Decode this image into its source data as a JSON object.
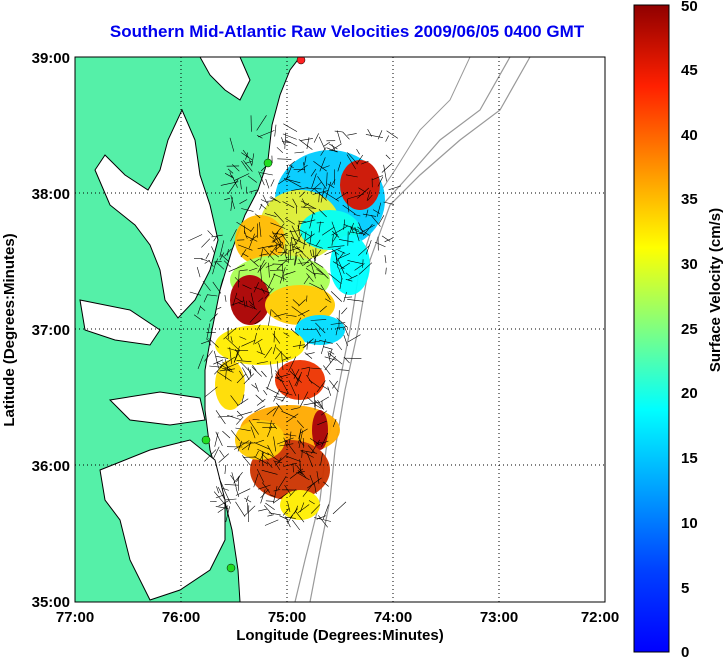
{
  "title": "Southern Mid-Atlantic Raw Velocities 2009/06/05 0400 GMT",
  "map": {
    "xlabel": "Longitude (Degrees:Minutes)",
    "ylabel": "Latitude (Degrees:Minutes)",
    "x_ticks": [
      "77:00",
      "76:00",
      "75:00",
      "74:00",
      "73:00",
      "72:00"
    ],
    "y_ticks": [
      "39:00",
      "38:00",
      "37:00",
      "36:00",
      "35:00"
    ],
    "lon_range": [
      -77,
      -72
    ],
    "lat_range": [
      35,
      39
    ],
    "grid": true,
    "colors": {
      "land": "#55f0a8",
      "coast": "#000000",
      "bathymetry": "#999999",
      "stations": "#22dd22",
      "station_active": "#ff2222"
    }
  },
  "colorbar": {
    "label": "Surface Velocity (cm/s)",
    "ticks": [
      "0",
      "5",
      "10",
      "15",
      "20",
      "25",
      "30",
      "35",
      "40",
      "45",
      "50"
    ],
    "range": [
      0,
      50
    ],
    "colormap": "jet"
  }
}
